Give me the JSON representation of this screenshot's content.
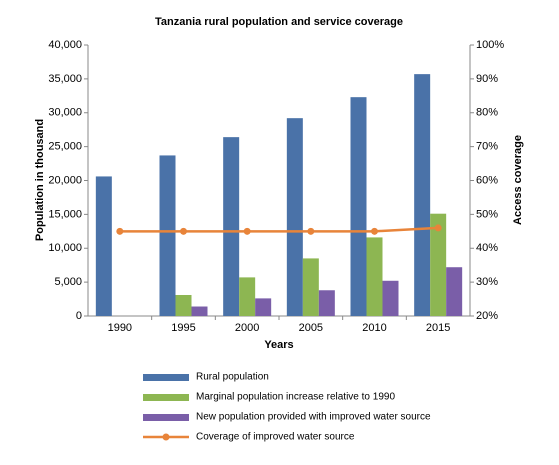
{
  "chart_data": {
    "type": "bar",
    "title": "Tanzania rural population and service coverage",
    "x_label": "Years",
    "y_label": "Population in thousand",
    "y2_label": "Access coverage",
    "categories": [
      "1990",
      "1995",
      "2000",
      "2005",
      "2010",
      "2015"
    ],
    "series": [
      {
        "name": "Rural population",
        "color": "#4a72a8",
        "values": [
          20600,
          23700,
          26400,
          29200,
          32300,
          35700
        ]
      },
      {
        "name": "Marginal population increase relative to 1990",
        "color": "#8db652",
        "values": [
          0,
          3100,
          5700,
          8500,
          11600,
          15100
        ]
      },
      {
        "name": "New population provided with improved water source",
        "color": "#7a5ea8",
        "values": [
          0,
          1400,
          2600,
          3800,
          5200,
          7200
        ]
      },
      {
        "name": "Coverage of improved water source",
        "color": "#e8843a",
        "axis": "y2",
        "values": [
          45,
          45,
          45,
          45,
          45,
          46
        ]
      }
    ],
    "ylim": [
      0,
      40000
    ],
    "yticks": [
      {
        "value": 0,
        "label": "0"
      },
      {
        "value": 5000,
        "label": "5,000"
      },
      {
        "value": 10000,
        "label": "10,000"
      },
      {
        "value": 15000,
        "label": "15,000"
      },
      {
        "value": 20000,
        "label": "20,000"
      },
      {
        "value": 25000,
        "label": "25,000"
      },
      {
        "value": 30000,
        "label": "30,000"
      },
      {
        "value": 35000,
        "label": "35,000"
      },
      {
        "value": 40000,
        "label": "40,000"
      }
    ],
    "y2lim": [
      20,
      100
    ],
    "y2ticks": [
      {
        "value": 20,
        "label": "20%"
      },
      {
        "value": 30,
        "label": "30%"
      },
      {
        "value": 40,
        "label": "40%"
      },
      {
        "value": 50,
        "label": "50%"
      },
      {
        "value": 60,
        "label": "60%"
      },
      {
        "value": 70,
        "label": "70%"
      },
      {
        "value": 80,
        "label": "80%"
      },
      {
        "value": 90,
        "label": "90%"
      },
      {
        "value": 100,
        "label": "100%"
      }
    ],
    "grid": false,
    "legend": "bottom"
  }
}
